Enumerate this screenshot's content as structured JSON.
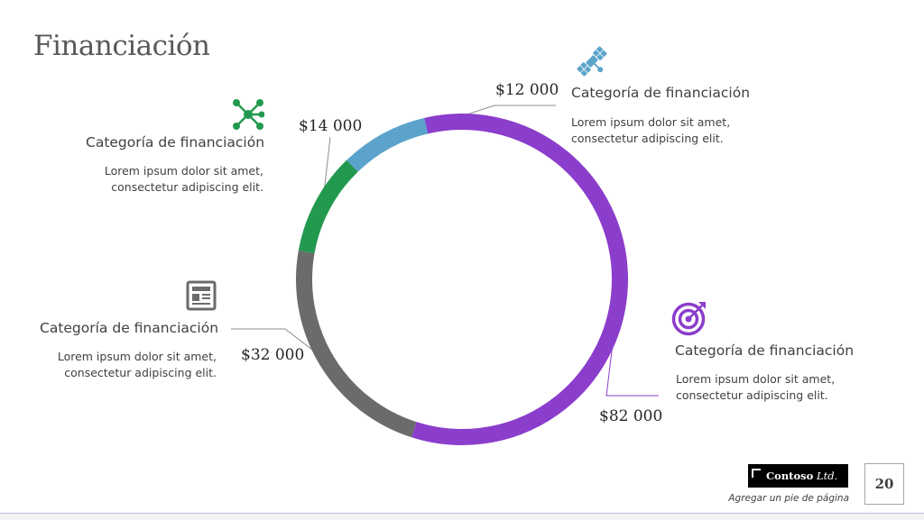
{
  "title": "Financiación",
  "chart_data": {
    "type": "pie",
    "donut": true,
    "title": "",
    "slices": [
      {
        "label": "Categoría de financiación",
        "value": 12000,
        "value_label": "$12 000",
        "color": "#5BA3CB",
        "icon": "satellite-icon",
        "description": "Lorem ipsum dolor sit amet, consectetur adipiscing elit."
      },
      {
        "label": "Categoría de financiación",
        "value": 82000,
        "value_label": "$82 000",
        "color": "#8B3DCB",
        "icon": "target-icon",
        "description": "Lorem ipsum dolor sit amet, consectetur adipiscing elit."
      },
      {
        "label": "Categoría de financiación",
        "value": 32000,
        "value_label": "$32 000",
        "color": "#6B6B6B",
        "icon": "newspaper-icon",
        "description": "Lorem ipsum dolor sit amet, consectetur adipiscing elit."
      },
      {
        "label": "Categoría de financiación",
        "value": 14000,
        "value_label": "$14 000",
        "color": "#23994F",
        "icon": "network-icon",
        "description": "Lorem ipsum dolor sit amet, consectetur adipiscing elit."
      }
    ]
  },
  "footer": {
    "brand_name": "Contoso",
    "brand_suffix": "Ltd.",
    "text": "Agregar un pie de página",
    "page_number": "20"
  }
}
